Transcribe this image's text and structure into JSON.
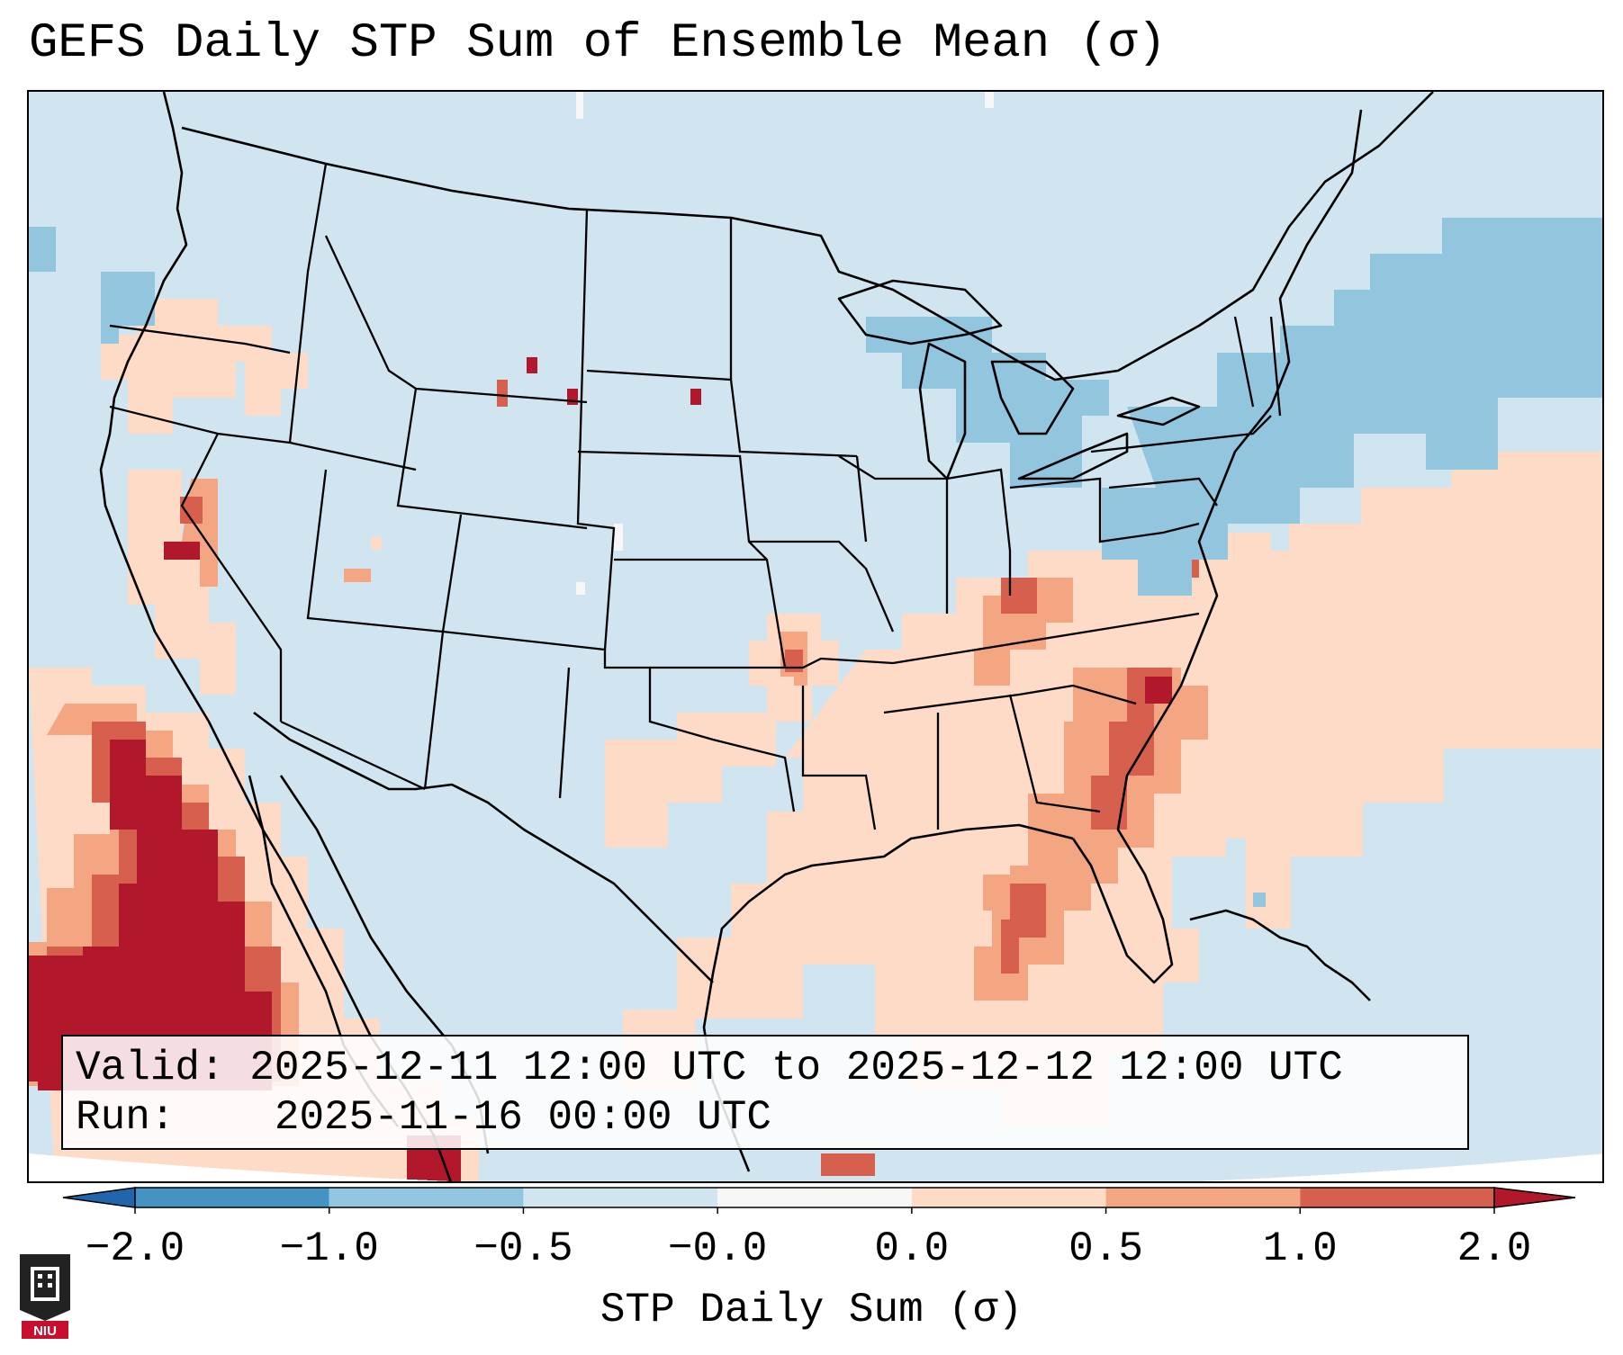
{
  "title": "GEFS Daily STP Sum of Ensemble Mean (σ)",
  "info": {
    "valid_label": "Valid:",
    "valid_value": "2025-12-11 12:00 UTC to 2025-12-12 12:00 UTC",
    "run_label": "Run:",
    "run_value": "2025-11-16 00:00 UTC"
  },
  "colorbar": {
    "label": "STP Daily Sum (σ)",
    "ticks": [
      "−2.0",
      "−1.0",
      "−0.5",
      "−0.0",
      "0.0",
      "0.5",
      "1.0",
      "2.0"
    ],
    "bins": [
      {
        "from": -2.0,
        "to": -1.0,
        "color": "#4393c3"
      },
      {
        "from": -1.0,
        "to": -0.5,
        "color": "#92c5de"
      },
      {
        "from": -0.5,
        "to": -0.0,
        "color": "#d1e5f0"
      },
      {
        "from": -0.0,
        "to": 0.0,
        "color": "#f7f7f7"
      },
      {
        "from": 0.0,
        "to": 0.5,
        "color": "#fddbc7"
      },
      {
        "from": 0.5,
        "to": 1.0,
        "color": "#f4a582"
      },
      {
        "from": 1.0,
        "to": 2.0,
        "color": "#d6604d"
      }
    ],
    "under_color": "#2166ac",
    "over_color": "#b2182b"
  },
  "map": {
    "background_color": "#d1e5f0",
    "region": "Contiguous United States with Gulf of Mexico and western Atlantic",
    "notable_anomalies": [
      {
        "area": "Eastern Pacific off Baja California",
        "level": "over 2.0"
      },
      {
        "area": "Southeast U.S. / Carolinas",
        "level": "1.0 to 2.0"
      },
      {
        "area": "Great Lakes / New England",
        "level": "-1.0 to -0.5"
      }
    ]
  },
  "logo": {
    "text": "NIU"
  }
}
